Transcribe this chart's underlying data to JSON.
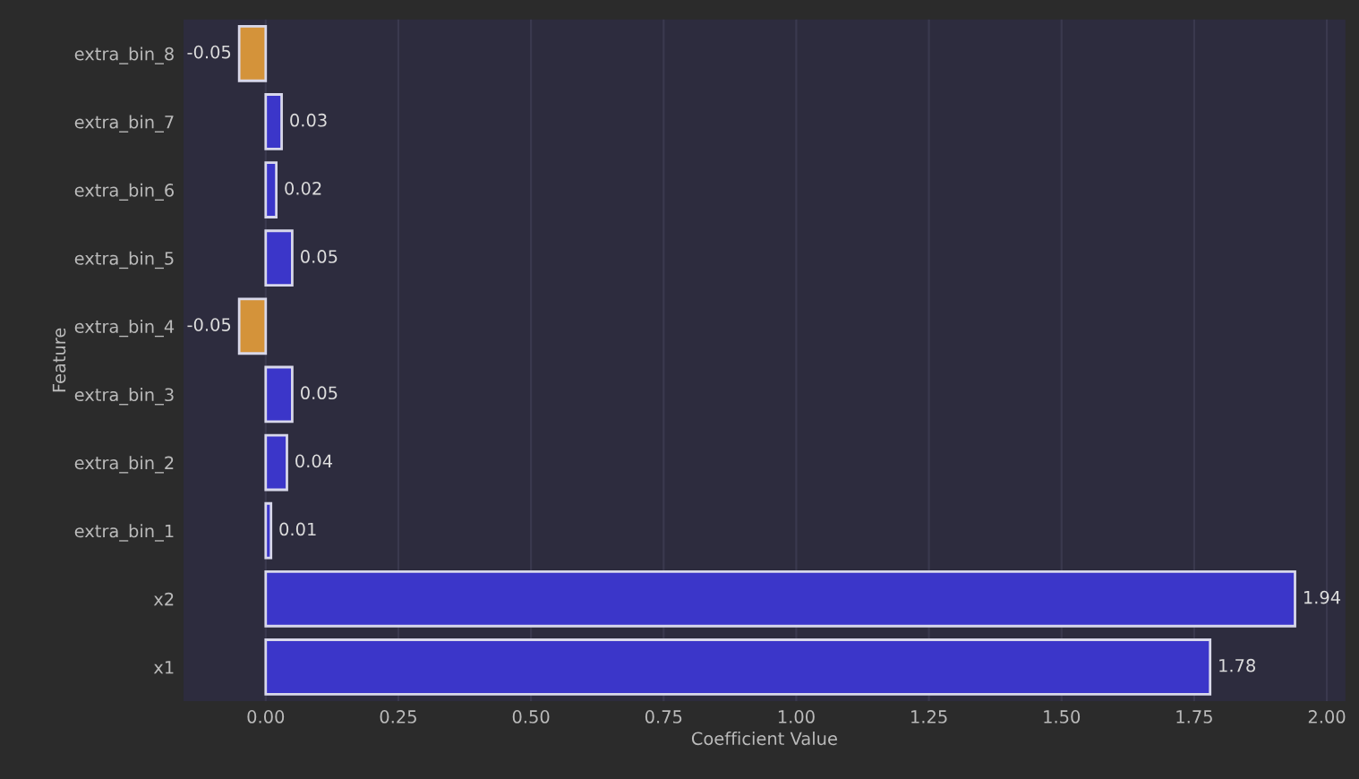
{
  "chart_data": {
    "type": "bar",
    "orientation": "horizontal",
    "xlabel": "Coefficient Value",
    "ylabel": "Feature",
    "categories": [
      "extra_bin_8",
      "extra_bin_7",
      "extra_bin_6",
      "extra_bin_5",
      "extra_bin_4",
      "extra_bin_3",
      "extra_bin_2",
      "extra_bin_1",
      "x2",
      "x1"
    ],
    "values": [
      -0.05,
      0.03,
      0.02,
      0.05,
      -0.05,
      0.05,
      0.04,
      0.01,
      1.94,
      1.78
    ],
    "colors": [
      "#d4933a",
      "#3b36c9",
      "#3b36c9",
      "#3b36c9",
      "#d4933a",
      "#3b36c9",
      "#3b36c9",
      "#3b36c9",
      "#3b36c9",
      "#3b36c9"
    ],
    "value_labels": [
      "-0.05",
      "0.03",
      "0.02",
      "0.05",
      "-0.05",
      "0.05",
      "0.04",
      "0.01",
      "1.94",
      "1.78"
    ],
    "xlim": [
      -0.155,
      2.035
    ],
    "xticks": [
      {
        "value": 0,
        "label": "0.00"
      },
      {
        "value": 0.25,
        "label": "0.25"
      },
      {
        "value": 0.5,
        "label": "0.50"
      },
      {
        "value": 0.75,
        "label": "0.75"
      },
      {
        "value": 1,
        "label": "1.00"
      },
      {
        "value": 1.25,
        "label": "1.25"
      },
      {
        "value": 1.5,
        "label": "1.50"
      },
      {
        "value": 1.75,
        "label": "1.75"
      },
      {
        "value": 2,
        "label": "2.00"
      }
    ],
    "grid": "x"
  }
}
